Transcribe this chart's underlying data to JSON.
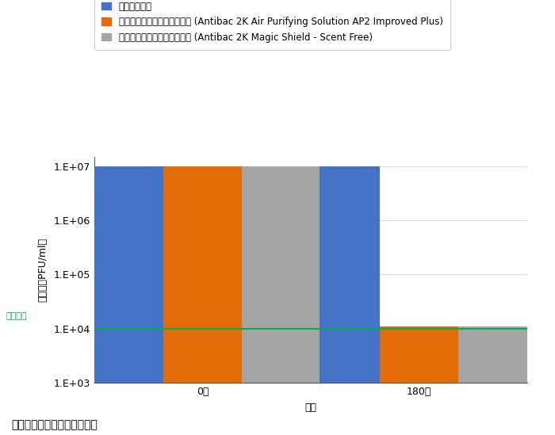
{
  "xlabel": "時間",
  "ylabel": "感染値（PFU/ml）",
  "categories": [
    "0秒",
    "180秒"
  ],
  "series": [
    {
      "name": "コントロール",
      "color": "#4472C4",
      "values": [
        10000000.0,
        10000000.0
      ]
    },
    {
      "name": "リシノール酸亜邉含有除菌液 (Antibac 2K Air Purifying Solution AP2 Improved Plus)",
      "color": "#E36C09",
      "values": [
        10000000.0,
        10000.0
      ]
    },
    {
      "name": "リシノール酸亜邉含有除菌液 (Antibac 2K Magic Shield - Scent Free)",
      "color": "#A5A5A5",
      "values": [
        10000000.0,
        10000.0
      ]
    }
  ],
  "ylim_log_min": 1000,
  "ylim_log_max": 10000000.0,
  "yticks": [
    1000,
    10000,
    100000,
    1000000,
    10000000
  ],
  "ytick_labels": [
    "1.E+03",
    "1.E+04",
    "1.E+05",
    "1.E+06",
    "1.E+07"
  ],
  "detection_limit": 10000.0,
  "detection_limit_label": "検出限界",
  "detection_limit_color": "#00B050",
  "background_color": "#FFFFFF",
  "grid_color": "#D9D9D9",
  "caption": "図１．ウイルス感染価の推移",
  "bar_width": 0.18,
  "legend_fontsize": 8.5,
  "axis_fontsize": 9,
  "tick_fontsize": 9,
  "caption_fontsize": 10
}
